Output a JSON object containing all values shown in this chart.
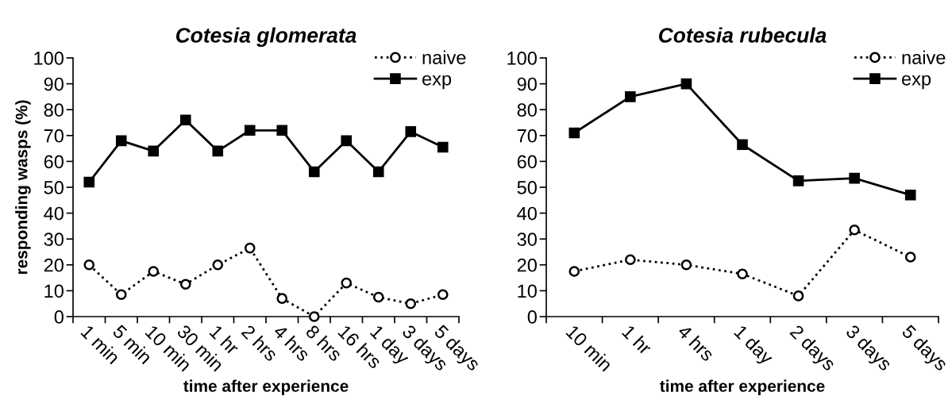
{
  "chart_data": [
    {
      "type": "line",
      "title": "Cotesia glomerata",
      "xlabel": "time after experience",
      "ylabel": "responding wasps (%)",
      "categories": [
        "1 min",
        "5 min",
        "10 min",
        "30 min",
        "1 hr",
        "2 hrs",
        "4 hrs",
        "8 hrs",
        "16 hrs",
        "1 day",
        "3 days",
        "5 days"
      ],
      "series": [
        {
          "name": "naive",
          "color": "#000000",
          "marker": "circle",
          "line_style": "dotted",
          "values": [
            20,
            8.5,
            17.5,
            12.5,
            20,
            26.5,
            7,
            0,
            13,
            7.5,
            5,
            8.5
          ]
        },
        {
          "name": "exp",
          "color": "#000000",
          "marker": "square",
          "line_style": "solid",
          "values": [
            52,
            68,
            64,
            76,
            64,
            72,
            72,
            56,
            68,
            56,
            71.5,
            65.5
          ]
        }
      ],
      "ylim": [
        0,
        100
      ],
      "yticks": [
        0,
        10,
        20,
        30,
        40,
        50,
        60,
        70,
        80,
        90,
        100
      ],
      "grid": false,
      "legend": "top right"
    },
    {
      "type": "line",
      "title": "Cotesia rubecula",
      "xlabel": "time after experience",
      "categories": [
        "10 min",
        "1 hr",
        "4 hrs",
        "1 day",
        "2 days",
        "3 days",
        "5 days"
      ],
      "series": [
        {
          "name": "naive",
          "color": "#000000",
          "marker": "circle",
          "line_style": "dotted",
          "values": [
            17.5,
            22,
            20,
            16.5,
            8,
            33.5,
            23
          ]
        },
        {
          "name": "exp",
          "color": "#000000",
          "marker": "square",
          "line_style": "solid",
          "values": [
            71,
            85,
            90,
            66.5,
            52.5,
            53.5,
            47
          ]
        }
      ],
      "ylim": [
        0,
        100
      ],
      "yticks": [
        0,
        10,
        20,
        30,
        40,
        50,
        60,
        70,
        80,
        90,
        100
      ],
      "grid": false,
      "legend": "top right"
    }
  ]
}
